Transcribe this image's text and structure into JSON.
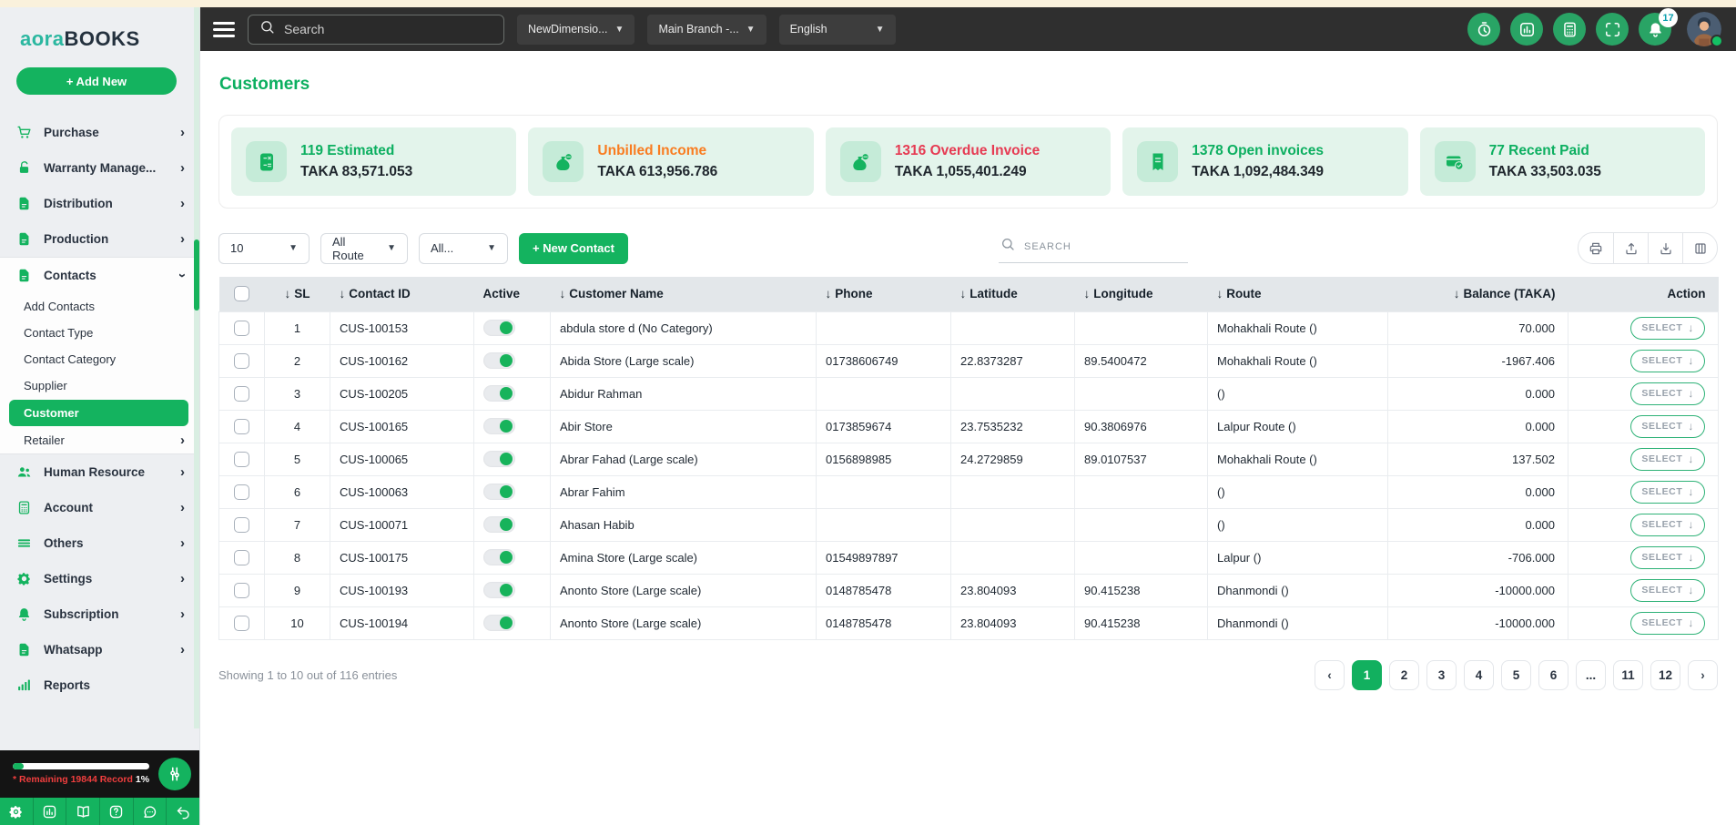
{
  "topbar": {
    "search_placeholder": "Search",
    "company_dropdown": "NewDimensio...",
    "branch_dropdown": "Main Branch -...",
    "language_dropdown": "English",
    "notification_count": "17",
    "icon_buttons": [
      "timer-icon",
      "bar-chart-icon",
      "calculator-icon",
      "scan-icon",
      "bell-icon"
    ]
  },
  "sidebar": {
    "logo_part1": "aora",
    "logo_part2": "BOOKS",
    "add_new_label": "+ Add New",
    "sections": [
      {
        "expanded": false,
        "items": [
          {
            "label": "Purchase",
            "icon": "cart-icon",
            "chevron": "right"
          },
          {
            "label": "Warranty Manage...",
            "icon": "lock-open-icon",
            "chevron": "right"
          },
          {
            "label": "Distribution",
            "icon": "file-icon",
            "chevron": "right"
          },
          {
            "label": "Production",
            "icon": "file-icon",
            "chevron": "right"
          }
        ]
      },
      {
        "expanded": true,
        "items": [
          {
            "label": "Contacts",
            "icon": "file-icon",
            "chevron": "down",
            "children": [
              {
                "label": "Add Contacts"
              },
              {
                "label": "Contact Type"
              },
              {
                "label": "Contact Category"
              },
              {
                "label": "Supplier"
              },
              {
                "label": "Customer",
                "active": true
              },
              {
                "label": "Retailer",
                "chevron": "right"
              }
            ]
          }
        ]
      },
      {
        "expanded": false,
        "items": [
          {
            "label": "Human Resource",
            "icon": "users-icon",
            "chevron": "right"
          },
          {
            "label": "Account",
            "icon": "calculator-icon",
            "chevron": "right"
          },
          {
            "label": "Others",
            "icon": "menu-lines-icon",
            "chevron": "right"
          },
          {
            "label": "Settings",
            "icon": "gear-icon",
            "chevron": "right"
          },
          {
            "label": "Subscription",
            "icon": "bell-icon",
            "chevron": "right"
          },
          {
            "label": "Whatsapp",
            "icon": "file-icon",
            "chevron": "right"
          },
          {
            "label": "Reports",
            "icon": "bar-chart-rise-icon",
            "chevron": "none"
          }
        ]
      }
    ],
    "usage": {
      "label": "* Remaining 19844 Record",
      "percent": "1%",
      "progress_percent": 8
    },
    "footer_icons": [
      "gear-icon",
      "bar-chart-icon",
      "book-icon",
      "help-icon",
      "chat-icon",
      "undo-icon"
    ]
  },
  "page": {
    "title": "Customers"
  },
  "stats": [
    {
      "title": "119 Estimated",
      "value": "TAKA 83,571.053",
      "color": "#0caf60",
      "icon": "calc-pad-icon"
    },
    {
      "title": "Unbilled Income",
      "value": "TAKA 613,956.786",
      "color": "#f97c20",
      "icon": "money-bag-icon"
    },
    {
      "title": "1316 Overdue Invoice",
      "value": "TAKA 1,055,401.249",
      "color": "#e63a52",
      "icon": "money-bag-icon"
    },
    {
      "title": "1378 Open invoices",
      "value": "TAKA 1,092,484.349",
      "color": "#0caf60",
      "icon": "receipt-icon"
    },
    {
      "title": "77 Recent Paid",
      "value": "TAKA 33,503.035",
      "color": "#0caf60",
      "icon": "card-check-icon"
    }
  ],
  "toolbar": {
    "page_size": "10",
    "route_filter": "All Route",
    "category_filter": "All...",
    "new_contact_label": "+ New Contact",
    "search_placeholder": "SEARCH",
    "tools": [
      "printer-icon",
      "export-icon",
      "download-icon",
      "columns-icon"
    ]
  },
  "table": {
    "headers": [
      {
        "label": "",
        "type": "checkbox"
      },
      {
        "label": "SL",
        "sort": true,
        "align": "center"
      },
      {
        "label": "Contact ID",
        "sort": true
      },
      {
        "label": "Active",
        "sort": false
      },
      {
        "label": "Customer Name",
        "sort": true
      },
      {
        "label": "Phone",
        "sort": true
      },
      {
        "label": "Latitude",
        "sort": true
      },
      {
        "label": "Longitude",
        "sort": true
      },
      {
        "label": "Route",
        "sort": true
      },
      {
        "label": "Balance (TAKA)",
        "sort": true,
        "align": "right"
      },
      {
        "label": "Action",
        "sort": false,
        "align": "right"
      }
    ],
    "action_label": "SELECT",
    "rows": [
      {
        "sl": "1",
        "contact_id": "CUS-100153",
        "active": true,
        "customer_name": "abdula store d (No Category)",
        "phone": "",
        "latitude": "",
        "longitude": "",
        "route": "Mohakhali Route ()",
        "balance": "70.000"
      },
      {
        "sl": "2",
        "contact_id": "CUS-100162",
        "active": true,
        "customer_name": "Abida Store (Large scale)",
        "phone": "01738606749",
        "latitude": "22.8373287",
        "longitude": "89.5400472",
        "route": "Mohakhali Route ()",
        "balance": "-1967.406"
      },
      {
        "sl": "3",
        "contact_id": "CUS-100205",
        "active": true,
        "customer_name": "Abidur Rahman",
        "phone": "",
        "latitude": "",
        "longitude": "",
        "route": "()",
        "balance": "0.000"
      },
      {
        "sl": "4",
        "contact_id": "CUS-100165",
        "active": true,
        "customer_name": "Abir Store",
        "phone": "0173859674",
        "latitude": "23.7535232",
        "longitude": "90.3806976",
        "route": "Lalpur Route ()",
        "balance": "0.000"
      },
      {
        "sl": "5",
        "contact_id": "CUS-100065",
        "active": true,
        "customer_name": "Abrar Fahad (Large scale)",
        "phone": "0156898985",
        "latitude": "24.2729859",
        "longitude": "89.0107537",
        "route": "Mohakhali Route ()",
        "balance": "137.502"
      },
      {
        "sl": "6",
        "contact_id": "CUS-100063",
        "active": true,
        "customer_name": "Abrar Fahim",
        "phone": "",
        "latitude": "",
        "longitude": "",
        "route": "()",
        "balance": "0.000"
      },
      {
        "sl": "7",
        "contact_id": "CUS-100071",
        "active": true,
        "customer_name": "Ahasan Habib",
        "phone": "",
        "latitude": "",
        "longitude": "",
        "route": "()",
        "balance": "0.000"
      },
      {
        "sl": "8",
        "contact_id": "CUS-100175",
        "active": true,
        "customer_name": "Amina Store (Large scale)",
        "phone": "01549897897",
        "latitude": "",
        "longitude": "",
        "route": "Lalpur ()",
        "balance": "-706.000"
      },
      {
        "sl": "9",
        "contact_id": "CUS-100193",
        "active": true,
        "customer_name": "Anonto Store (Large scale)",
        "phone": "0148785478",
        "latitude": "23.804093",
        "longitude": "90.415238",
        "route": "Dhanmondi ()",
        "balance": "-10000.000"
      },
      {
        "sl": "10",
        "contact_id": "CUS-100194",
        "active": true,
        "customer_name": "Anonto Store (Large scale)",
        "phone": "0148785478",
        "latitude": "23.804093",
        "longitude": "90.415238",
        "route": "Dhanmondi ()",
        "balance": "-10000.000"
      }
    ]
  },
  "footer": {
    "showing": "Showing 1 to 10 out of 116 entries",
    "pages": [
      "1",
      "2",
      "3",
      "4",
      "5",
      "6",
      "...",
      "11",
      "12"
    ],
    "active_page": "1"
  }
}
